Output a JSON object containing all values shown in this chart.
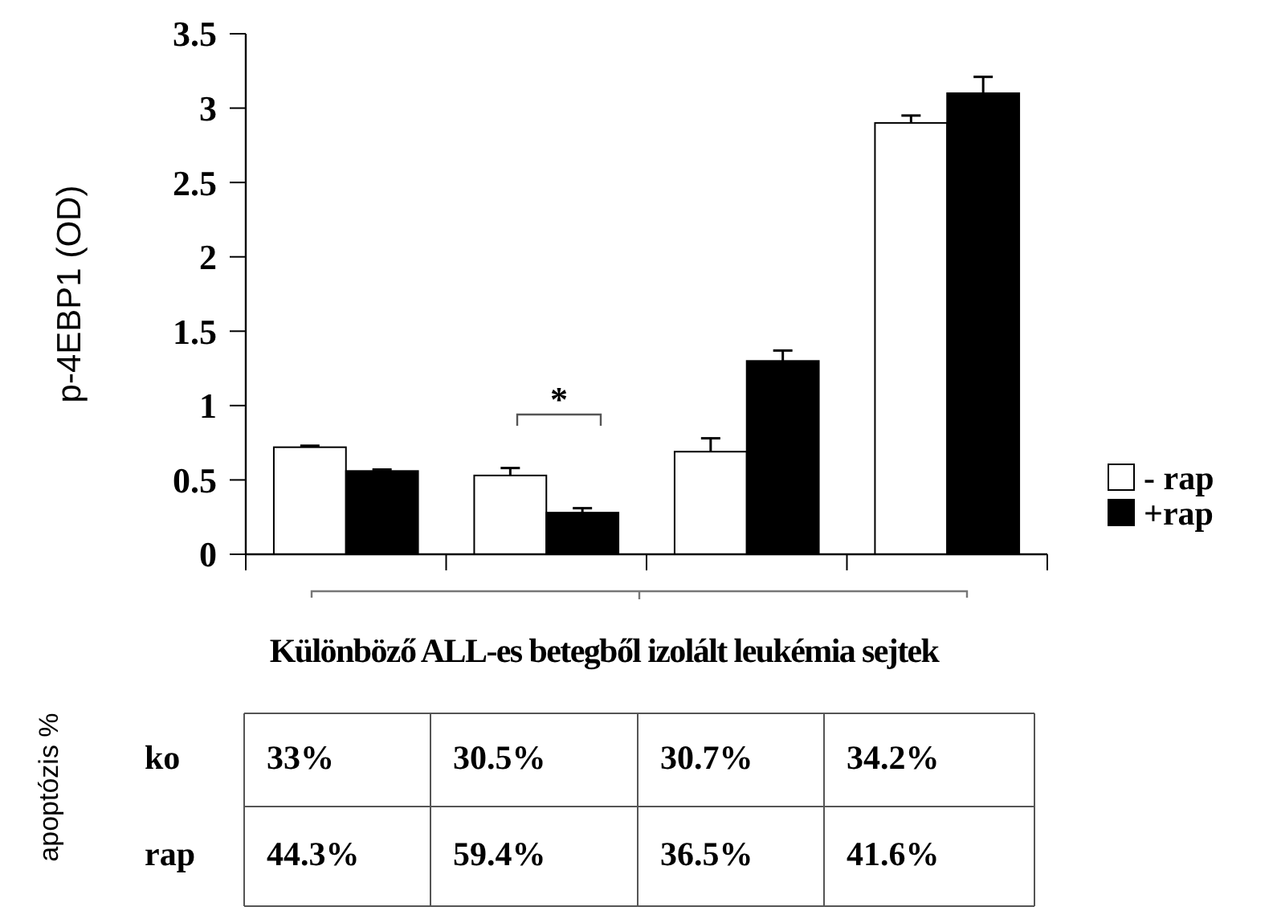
{
  "chart_data": {
    "type": "bar",
    "ylabel": "p-4EBP1 (OD)",
    "xlabel": "Különböző ALL-es betegből izolált leukémia sejtek",
    "categories": [
      null,
      null,
      null,
      null
    ],
    "series": [
      {
        "name": "- rap",
        "color": "#ffffff",
        "values": [
          0.72,
          0.53,
          0.69,
          2.9
        ],
        "errors": [
          0.01,
          0.05,
          0.09,
          0.05
        ]
      },
      {
        "name": "+rap",
        "color": "#000000",
        "values": [
          0.56,
          0.28,
          1.3,
          3.1
        ],
        "errors": [
          0.01,
          0.03,
          0.07,
          0.11
        ]
      }
    ],
    "ylim": [
      0,
      3.5
    ],
    "yticks": [
      0,
      0.5,
      1,
      1.5,
      2,
      2.5,
      3,
      3.5
    ],
    "grid": false,
    "legend": "right",
    "annotations": [
      "*",
      "apoptózis %",
      "ko",
      "33%",
      "30.5%",
      "30.7%",
      "34.2%",
      "rap",
      "44.3%",
      "59.4%",
      "36.5%",
      "41.6%"
    ]
  }
}
